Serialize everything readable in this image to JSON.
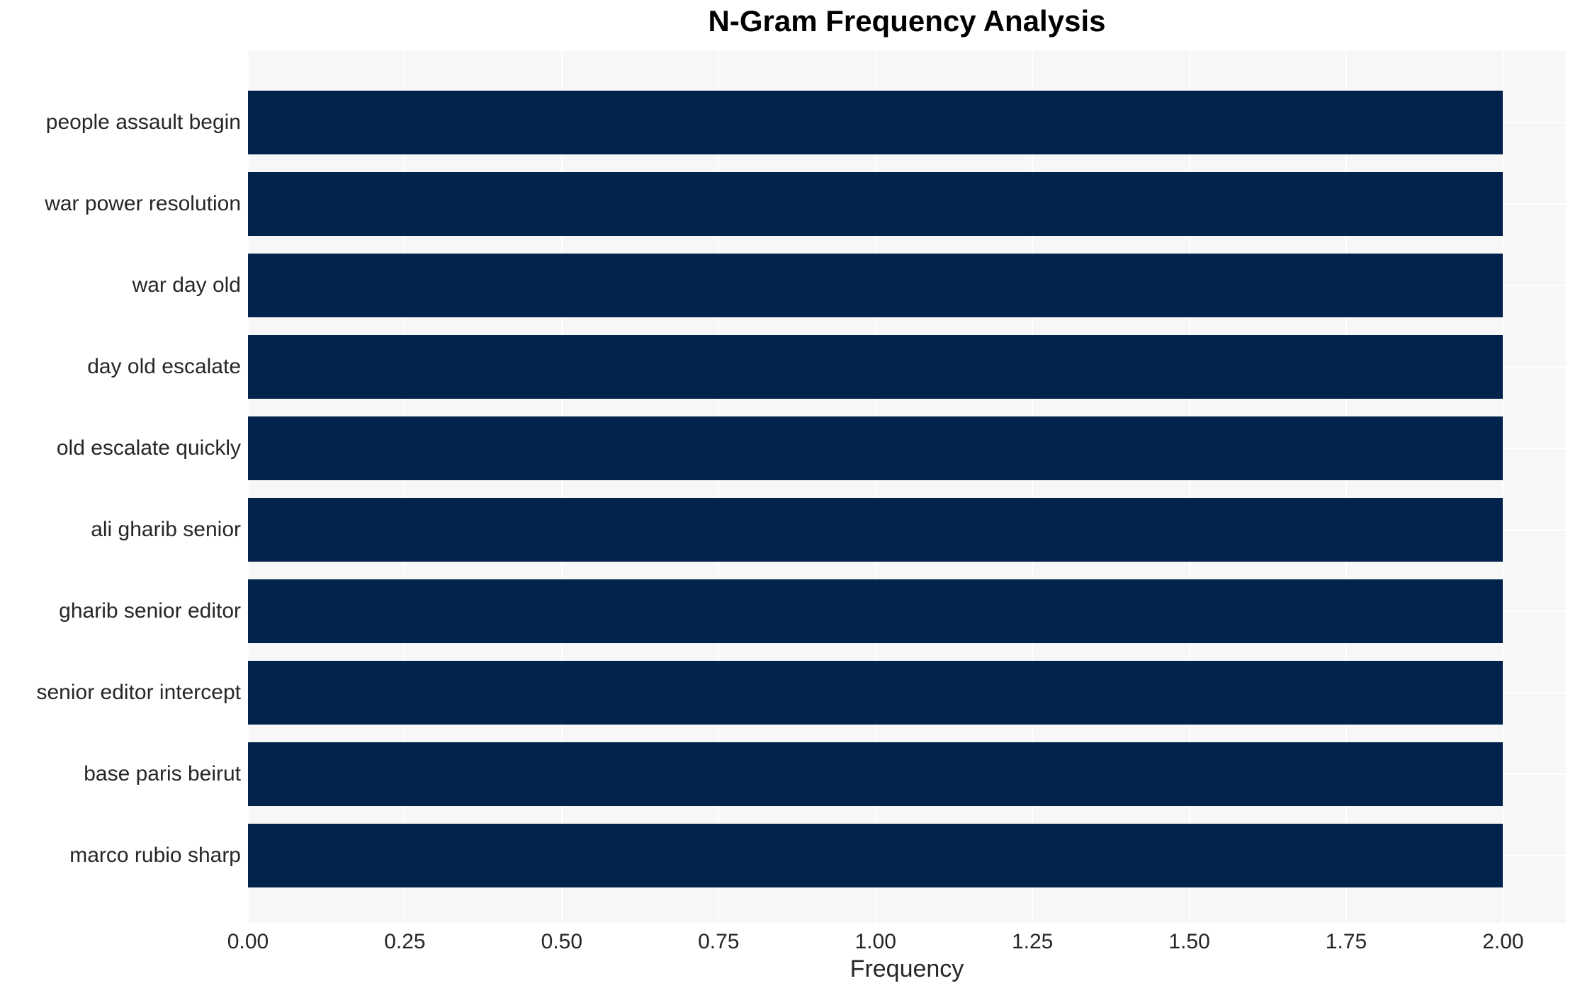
{
  "chart_data": {
    "type": "bar",
    "orientation": "horizontal",
    "title": "N-Gram Frequency Analysis",
    "xlabel": "Frequency",
    "ylabel": "",
    "categories": [
      "people assault begin",
      "war power resolution",
      "war day old",
      "day old escalate",
      "old escalate quickly",
      "ali gharib senior",
      "gharib senior editor",
      "senior editor intercept",
      "base paris beirut",
      "marco rubio sharp"
    ],
    "values": [
      2,
      2,
      2,
      2,
      2,
      2,
      2,
      2,
      2,
      2
    ],
    "xlim": [
      0,
      2.1
    ],
    "xtick_labels": [
      "0.00",
      "0.25",
      "0.50",
      "0.75",
      "1.00",
      "1.25",
      "1.50",
      "1.75",
      "2.00"
    ],
    "xtick_values": [
      0,
      0.25,
      0.5,
      0.75,
      1.0,
      1.25,
      1.5,
      1.75,
      2.0
    ],
    "grid": true,
    "legend": false,
    "colors": {
      "bar": "#02234c",
      "plot_background": "#f7f7f8",
      "gridline": "#ffffff",
      "tick_text": "#262626",
      "title_text": "#000000"
    }
  }
}
